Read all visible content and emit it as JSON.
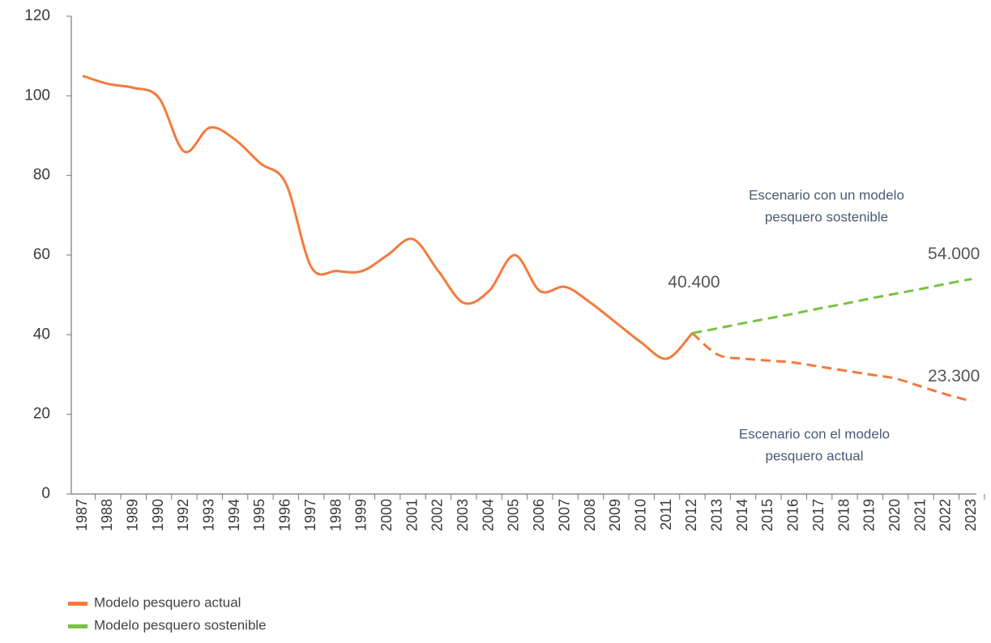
{
  "chart_data": {
    "type": "line",
    "categories": [
      "1987",
      "1988",
      "1989",
      "1990",
      "1992",
      "1993",
      "1994",
      "1995",
      "1996",
      "1997",
      "1998",
      "1999",
      "2000",
      "2001",
      "2002",
      "2003",
      "2004",
      "2005",
      "2006",
      "2007",
      "2008",
      "2009",
      "2010",
      "2011",
      "2012",
      "2013",
      "2014",
      "2015",
      "2016",
      "2017",
      "2018",
      "2019",
      "2020",
      "2021",
      "2022",
      "2023"
    ],
    "series": [
      {
        "name": "Modelo pesquero actual",
        "color": "#f47a3c",
        "dashed_from_category": "2012",
        "values": [
          105,
          103,
          102,
          99.5,
          86,
          92,
          89,
          83,
          78,
          57,
          56,
          56,
          60,
          64,
          56,
          48,
          51,
          60,
          51,
          52,
          48,
          43,
          38,
          34,
          40.4,
          35,
          34,
          33.5,
          33,
          32,
          31,
          30,
          29,
          27,
          25,
          23.3
        ],
        "value_labels": [
          null,
          null,
          null,
          null,
          null,
          null,
          null,
          null,
          null,
          null,
          null,
          null,
          null,
          null,
          null,
          null,
          null,
          null,
          null,
          null,
          null,
          null,
          null,
          null,
          "40.400",
          null,
          null,
          null,
          null,
          null,
          null,
          null,
          null,
          null,
          null,
          "23.300"
        ]
      },
      {
        "name": "Modelo pesquero sostenible",
        "color": "#7ac143",
        "dashed": true,
        "values": [
          null,
          null,
          null,
          null,
          null,
          null,
          null,
          null,
          null,
          null,
          null,
          null,
          null,
          null,
          null,
          null,
          null,
          null,
          null,
          null,
          null,
          null,
          null,
          null,
          40.4,
          41.6,
          42.9,
          44.1,
          45.3,
          46.6,
          47.8,
          49.1,
          50.3,
          51.5,
          52.8,
          54
        ],
        "value_labels": [
          null,
          null,
          null,
          null,
          null,
          null,
          null,
          null,
          null,
          null,
          null,
          null,
          null,
          null,
          null,
          null,
          null,
          null,
          null,
          null,
          null,
          null,
          null,
          null,
          null,
          null,
          null,
          null,
          null,
          null,
          null,
          null,
          null,
          null,
          null,
          "54.000"
        ]
      }
    ],
    "annotations": [
      {
        "lines": [
          "Escenario con un modelo",
          "pesquero sostenible"
        ]
      },
      {
        "lines": [
          "Escenario con el modelo",
          "pesquero actual"
        ]
      }
    ],
    "ylim": [
      0,
      120
    ],
    "yticks": [
      0,
      20,
      40,
      60,
      80,
      100,
      120
    ],
    "grid": false
  }
}
